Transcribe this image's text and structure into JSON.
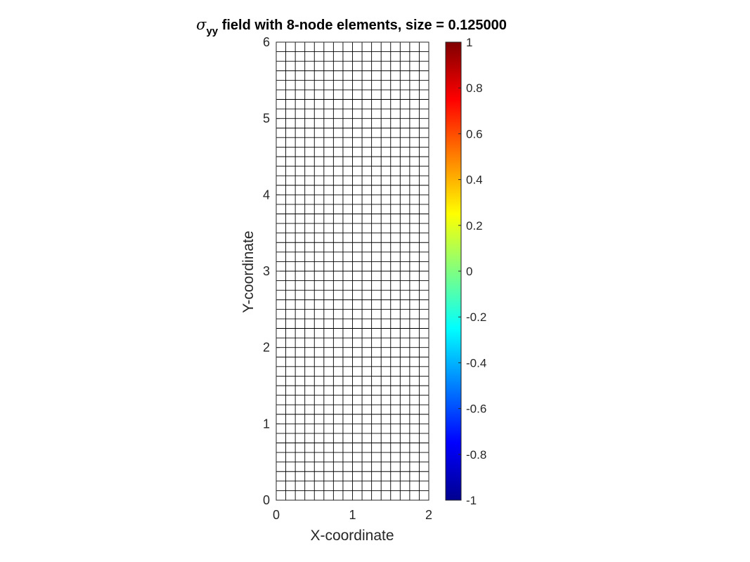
{
  "chart_data": {
    "type": "heatmap",
    "title": {
      "symbol": "σ",
      "subscript": "yy",
      "text": " field with 8-node elements, size = 0.125000"
    },
    "xlabel": "X-coordinate",
    "ylabel": "Y-coordinate",
    "xlim": [
      0,
      2
    ],
    "ylim": [
      0,
      6
    ],
    "xticks": [
      "0",
      "1",
      "2"
    ],
    "yticks": [
      "0",
      "1",
      "2",
      "3",
      "4",
      "5",
      "6"
    ],
    "mesh": {
      "element_size": 0.125,
      "node_type": "8-node"
    },
    "field_values": "uniform 0 (no fill shown)",
    "colorbar": {
      "colormap": "jet",
      "limits": [
        -1,
        1
      ],
      "ticks": [
        "-1",
        "-0.8",
        "-0.6",
        "-0.4",
        "-0.2",
        "0",
        "0.2",
        "0.4",
        "0.6",
        "0.8",
        "1"
      ]
    }
  }
}
